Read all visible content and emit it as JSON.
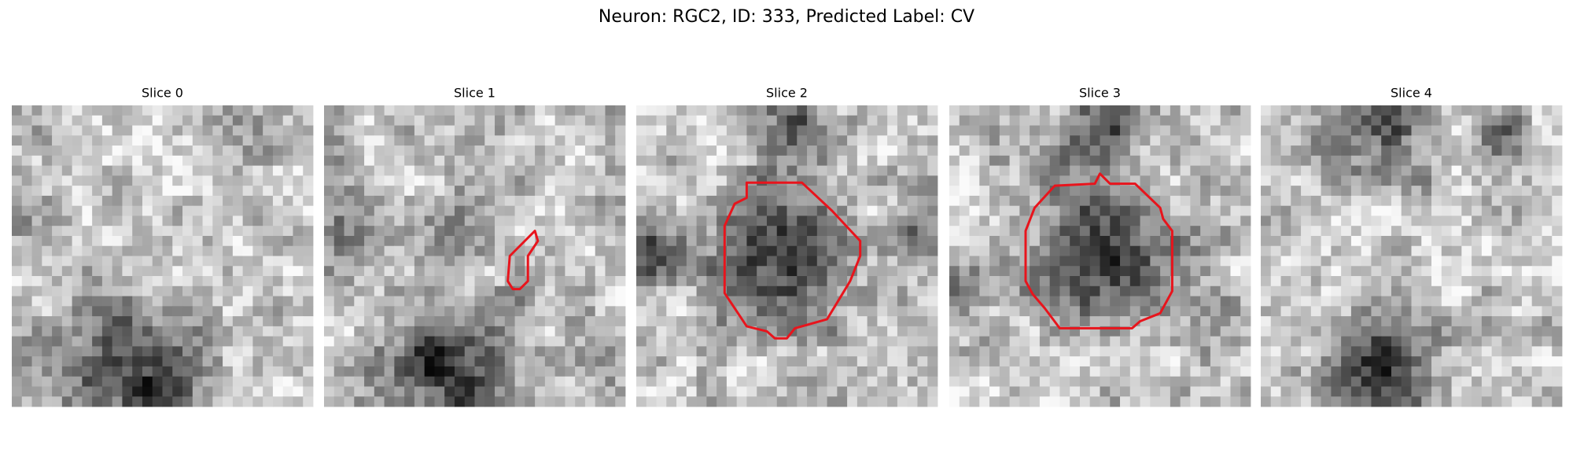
{
  "title": "Neuron: RGC2, ID: 333, Predicted Label: CV",
  "panels": [
    {
      "title": "Slice 0"
    },
    {
      "title": "Slice 1"
    },
    {
      "title": "Slice 2"
    },
    {
      "title": "Slice 3"
    },
    {
      "title": "Slice 4"
    }
  ]
}
